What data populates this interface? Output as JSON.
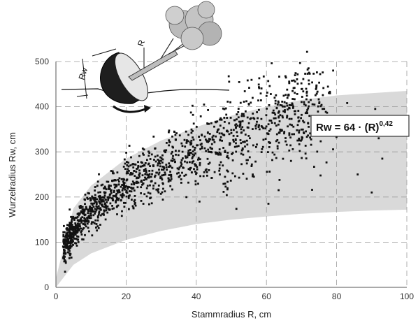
{
  "chart_data": {
    "type": "scatter",
    "title": "",
    "xlabel": "Stammradius R, cm",
    "ylabel": "Wurzelradius Rw, cm",
    "xlim": [
      0,
      100
    ],
    "ylim": [
      0,
      500
    ],
    "x_ticks": [
      "0",
      "20",
      "40",
      "60",
      "80",
      "100"
    ],
    "y_ticks": [
      "0",
      "100",
      "200",
      "300",
      "400",
      "500"
    ],
    "grid": "dashed",
    "equation": {
      "prefix": "Rw = 64 · (R)",
      "exponent": "0,42",
      "coefficient": 64,
      "power": 0.42
    },
    "band": {
      "description_points_x": [
        0,
        5,
        10,
        20,
        30,
        40,
        50,
        60,
        70,
        80,
        90,
        100
      ],
      "upper": [
        20,
        175,
        225,
        285,
        325,
        355,
        380,
        400,
        415,
        425,
        430,
        435
      ],
      "lower": [
        0,
        50,
        75,
        105,
        125,
        140,
        150,
        157,
        163,
        167,
        170,
        172
      ]
    },
    "series": [
      {
        "values_note": "approximately 1500 observations of root-plate radius vs stem radius; sampled from the fitted trend with scatter",
        "count": 1500,
        "x_range": [
          2,
          93
        ],
        "fit": "64*R^0.42"
      }
    ],
    "outliers": [
      {
        "x": 83,
        "y": 408
      },
      {
        "x": 91,
        "y": 395
      },
      {
        "x": 92,
        "y": 330
      },
      {
        "x": 93,
        "y": 285
      },
      {
        "x": 79,
        "y": 480
      },
      {
        "x": 86,
        "y": 250
      },
      {
        "x": 90,
        "y": 210
      },
      {
        "x": 76,
        "y": 395
      }
    ]
  },
  "illustration": {
    "label_rw": "Rw",
    "label_r": "R"
  },
  "colors": {
    "band": "#d9d9d9",
    "points": "#111111",
    "grid": "#9a9a9a",
    "axis": "#555555"
  }
}
